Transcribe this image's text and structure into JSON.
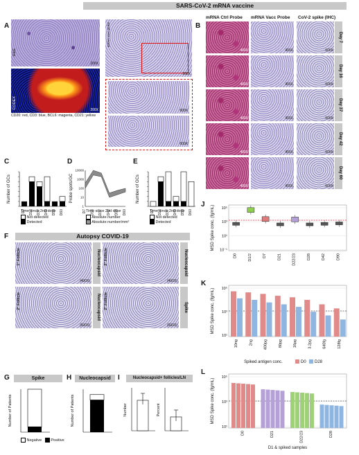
{
  "titles": {
    "mrna": "SARS-CoV-2 mRNA vaccine",
    "autopsy": "Autopsy COVID-19"
  },
  "panel_letters": {
    "A": "A",
    "B": "B",
    "C": "C",
    "D": "D",
    "E": "E",
    "F": "F",
    "G": "G",
    "H": "H",
    "I": "I",
    "J": "J",
    "K": "K",
    "L": "L"
  },
  "panelA": {
    "he_label": "H&E",
    "mag_200": "200X",
    "mag_200b": "200X",
    "mag_200c": "200X",
    "mag_600a": "600X",
    "mag_600b": "600X",
    "codex_label": "CODEX",
    "caption": "CD20: red, CD3: blue, BCL6: magenta, CD21: yellow",
    "probe_label": "mRNA vacc probe"
  },
  "panelB": {
    "col_headers": [
      "mRNA Ctrl Probe",
      "mRNA Vacc Probe",
      "CoV-2 spike (IHC)"
    ],
    "days": [
      "Day 7",
      "Day 16",
      "Day 37",
      "Day 42",
      "Day 60"
    ],
    "mags": [
      "400X",
      "400X",
      "600X"
    ]
  },
  "panelC": {
    "ylabel": "Number of GCs",
    "xlabel": "Time since 2nd dose",
    "categories": [
      "D7",
      "D16",
      "D37",
      "D42",
      "D59",
      "D60"
    ],
    "legend": [
      "Not detected",
      "Detected"
    ]
  },
  "panelD": {
    "ylabel": "Probe spots/GC",
    "xlabel": "Time since 2nd dose",
    "categories": [
      "D7",
      "D16",
      "D37",
      "D42",
      "D59",
      "D60"
    ],
    "yticks": [
      "10000",
      "1000",
      "100",
      "10",
      "1"
    ],
    "legend": [
      "Absolute number",
      "Absolute number/mm²"
    ]
  },
  "panelE": {
    "ylabel": "Number of GCs",
    "xlabel": "Time since 2nd dose",
    "categories": [
      "D7",
      "D16",
      "D37",
      "D42",
      "D59",
      "D60"
    ],
    "legend": [
      "Not detected",
      "Detected"
    ]
  },
  "panelF": {
    "labels": [
      "Nucleocapsid",
      "Nucleocapsid",
      "Nucleocapsid",
      "Spike"
    ],
    "follicle_1": "1° Follicle",
    "follicle_2": "2° Follicle",
    "follicle_3": "2° Follicle",
    "follicle_4": "2° Follicle",
    "mags": [
      "(400X)",
      "(400X)",
      "(600X)",
      "(600X)"
    ]
  },
  "panelG": {
    "title": "Spike",
    "ylabel": "Number of Patients"
  },
  "panelH": {
    "title": "Nucleocapsid",
    "ylabel": "Number of Patients"
  },
  "panelGH_legend": [
    "Negative",
    "Positive"
  ],
  "panelI": {
    "title": "Nucleocapsid+ follicles/LN",
    "ylabel1": "Number",
    "ylabel2": "Percent"
  },
  "panelJ": {
    "ylabel": "MSD Spike conc. (fg/mL)",
    "yticks": [
      "10⁵",
      "10³",
      "10¹",
      "10⁻¹"
    ],
    "categories": [
      "D0",
      "D1/2",
      "D7",
      "D21",
      "D22/23",
      "D28",
      "D42",
      "D90"
    ]
  },
  "panelK": {
    "ylabel": "MSD Spike conc. (fg/mL)",
    "yticks": [
      "10⁵",
      "10³",
      "10¹"
    ],
    "categories": [
      "10ng",
      "2ng",
      "400pg",
      "80pg",
      "16pg",
      "3.2pg",
      "640fg",
      "128fg"
    ],
    "xlabel": "Spiked antigen conc.",
    "legend": [
      "D0",
      "D28"
    ],
    "colors": {
      "D0": "#e08a8a",
      "D28": "#8fb6e0"
    }
  },
  "panelL": {
    "ylabel": "MSD Spike conc. (fg/mL)",
    "yticks": [
      "10⁵",
      "10³",
      "10¹"
    ],
    "categories": [
      "D0",
      "D21",
      "D22/23",
      "D28"
    ],
    "xlabel": "D1 & spiked samples",
    "colors": [
      "#e08a8a",
      "#b6a0d8",
      "#9fd07a",
      "#8fb6e0"
    ]
  },
  "chart_data": [
    {
      "type": "bar",
      "panel": "C",
      "categories": [
        "D7",
        "D16",
        "D37",
        "D42",
        "D59",
        "D60"
      ],
      "series": [
        {
          "name": "Not detected",
          "values": [
            0,
            1,
            1,
            5,
            0,
            1
          ]
        },
        {
          "name": "Detected",
          "values": [
            1,
            5,
            4,
            1,
            1,
            1
          ]
        }
      ]
    },
    {
      "type": "area",
      "panel": "D",
      "categories": [
        "D7",
        "D16",
        "D37",
        "D42",
        "D59",
        "D60"
      ],
      "yscale": "log",
      "series": [
        {
          "name": "Absolute number",
          "values": [
            100,
            3000,
            2000,
            10,
            20,
            40
          ]
        },
        {
          "name": "Absolute number/mm²",
          "values": [
            400,
            10000,
            5000,
            30,
            60,
            100
          ]
        }
      ]
    },
    {
      "type": "bar",
      "panel": "E",
      "categories": [
        "D7",
        "D16",
        "D37",
        "D42",
        "D59",
        "D60"
      ],
      "series": [
        {
          "name": "Not detected",
          "values": [
            1,
            1,
            6,
            1,
            6,
            5
          ]
        },
        {
          "name": "Detected",
          "values": [
            0,
            5,
            1,
            1,
            1,
            0
          ]
        }
      ]
    },
    {
      "type": "bar",
      "panel": "G",
      "categories": [
        "Spike"
      ],
      "series": [
        {
          "name": "Negative",
          "values": [
            7
          ]
        },
        {
          "name": "Positive",
          "values": [
            1
          ]
        }
      ]
    },
    {
      "type": "bar",
      "panel": "H",
      "categories": [
        "Nucleocapsid"
      ],
      "series": [
        {
          "name": "Negative",
          "values": [
            1
          ]
        },
        {
          "name": "Positive",
          "values": [
            6
          ]
        }
      ]
    },
    {
      "type": "bar",
      "panel": "J",
      "categories": [
        "D0",
        "D1/2",
        "D7",
        "D21",
        "D22/23",
        "D28",
        "D42",
        "D90"
      ],
      "series": [
        {
          "values": [
            300,
            30000,
            1500,
            250,
            1300,
            250,
            300,
            350
          ]
        }
      ]
    },
    {
      "type": "bar",
      "panel": "K",
      "categories": [
        "10ng",
        "2ng",
        "400pg",
        "80pg",
        "16pg",
        "3.2pg",
        "640fg",
        "128fg"
      ],
      "series": [
        {
          "name": "D0",
          "values": [
            200000,
            150000,
            100000,
            60000,
            40000,
            20000,
            6000,
            2000
          ]
        },
        {
          "name": "D28",
          "values": [
            30000,
            20000,
            10000,
            6000,
            3000,
            800,
            300,
            100
          ]
        }
      ]
    },
    {
      "type": "bar",
      "panel": "L",
      "categories": [
        "D0",
        "D21",
        "D22/23",
        "D28"
      ],
      "series": [
        {
          "values": [
            100000,
            20000,
            10000,
            400
          ]
        }
      ]
    }
  ]
}
